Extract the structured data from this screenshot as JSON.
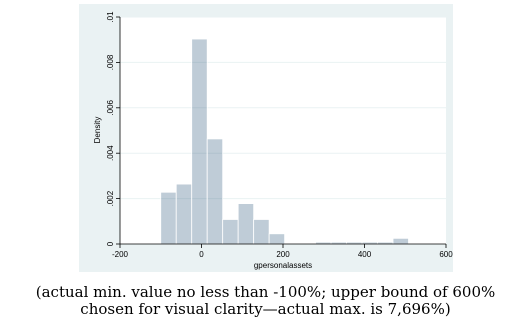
{
  "chart_data": {
    "type": "histogram",
    "title": "",
    "xlabel": "gpersonalassets",
    "ylabel": "Density",
    "xlim": [
      -200,
      600
    ],
    "ylim": [
      0,
      0.01
    ],
    "xticks": [
      -200,
      0,
      200,
      400,
      600
    ],
    "xtick_labels": [
      "-200",
      "0",
      "200",
      "400",
      "600"
    ],
    "yticks": [
      0,
      0.002,
      0.004,
      0.006,
      0.008,
      0.01
    ],
    "ytick_labels": [
      "0",
      ".002",
      ".004",
      ".006",
      ".008",
      ".01"
    ],
    "grid": true,
    "bar_color": "#1a476f",
    "bins": [
      {
        "x0": -100,
        "x1": -62,
        "value": 0.00228
      },
      {
        "x0": -62,
        "x1": -24,
        "value": 0.00264
      },
      {
        "x0": -24,
        "x1": 14,
        "value": 0.00903
      },
      {
        "x0": 14,
        "x1": 52,
        "value": 0.00463
      },
      {
        "x0": 52,
        "x1": 90,
        "value": 0.00108
      },
      {
        "x0": 90,
        "x1": 128,
        "value": 0.00178
      },
      {
        "x0": 128,
        "x1": 166,
        "value": 0.00108
      },
      {
        "x0": 166,
        "x1": 204,
        "value": 0.00045
      },
      {
        "x0": 204,
        "x1": 242,
        "value": 0.0
      },
      {
        "x0": 242,
        "x1": 280,
        "value": 0.0
      },
      {
        "x0": 280,
        "x1": 318,
        "value": 8e-05
      },
      {
        "x0": 318,
        "x1": 356,
        "value": 8e-05
      },
      {
        "x0": 356,
        "x1": 394,
        "value": 8e-05
      },
      {
        "x0": 394,
        "x1": 432,
        "value": 8e-05
      },
      {
        "x0": 432,
        "x1": 470,
        "value": 8e-05
      },
      {
        "x0": 470,
        "x1": 508,
        "value": 0.00025
      }
    ]
  },
  "caption": {
    "line1": "(actual min. value no less than -100%; upper bound of 600%",
    "line2": "chosen for visual clarity—actual max. is 7,696%)"
  }
}
